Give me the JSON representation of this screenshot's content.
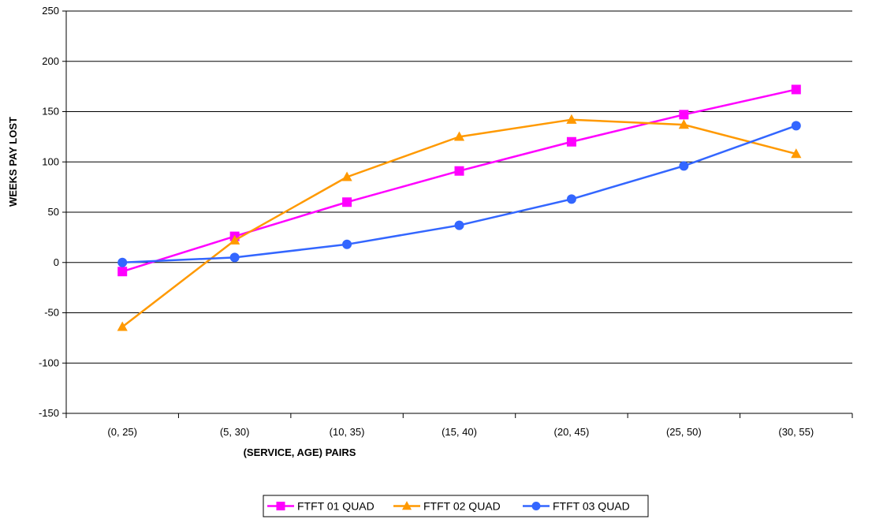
{
  "chart_data": {
    "type": "line",
    "title": "",
    "xlabel": "(SERVICE, AGE) PAIRS",
    "ylabel": "WEEKS PAY LOST",
    "categories": [
      "(0, 25)",
      "(5, 30)",
      "(10, 35)",
      "(15, 40)",
      "(20, 45)",
      "(25, 50)",
      "(30, 55)"
    ],
    "ylim": [
      -150,
      250
    ],
    "yticks": [
      -150,
      -100,
      -50,
      0,
      50,
      100,
      150,
      200,
      250
    ],
    "grid": "horizontal",
    "legend_position": "bottom-center",
    "series": [
      {
        "name": "FTFT 01 QUAD",
        "color": "#ff00ff",
        "marker": "square",
        "values": [
          -9,
          26,
          60,
          91,
          120,
          147,
          172
        ]
      },
      {
        "name": "FTFT 02 QUAD",
        "color": "#ff9900",
        "marker": "triangle",
        "values": [
          -64,
          22,
          85,
          125,
          142,
          137,
          108
        ]
      },
      {
        "name": "FTFT 03 QUAD",
        "color": "#3366ff",
        "marker": "circle",
        "values": [
          0,
          5,
          18,
          37,
          63,
          96,
          136
        ]
      }
    ]
  }
}
